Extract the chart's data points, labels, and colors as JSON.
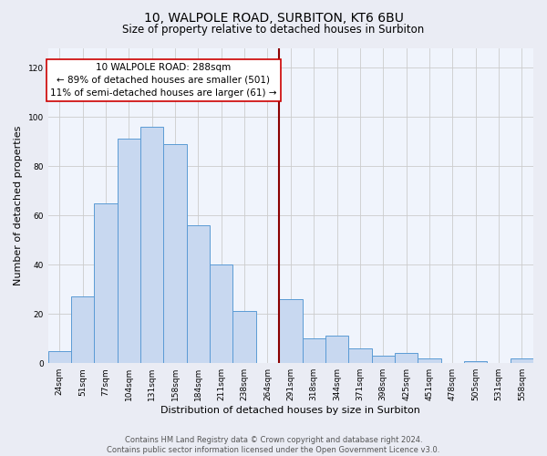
{
  "title": "10, WALPOLE ROAD, SURBITON, KT6 6BU",
  "subtitle": "Size of property relative to detached houses in Surbiton",
  "xlabel": "Distribution of detached houses by size in Surbiton",
  "ylabel": "Number of detached properties",
  "footer_lines": [
    "Contains HM Land Registry data © Crown copyright and database right 2024.",
    "Contains public sector information licensed under the Open Government Licence v3.0."
  ],
  "categories": [
    "24sqm",
    "51sqm",
    "77sqm",
    "104sqm",
    "131sqm",
    "158sqm",
    "184sqm",
    "211sqm",
    "238sqm",
    "264sqm",
    "291sqm",
    "318sqm",
    "344sqm",
    "371sqm",
    "398sqm",
    "425sqm",
    "451sqm",
    "478sqm",
    "505sqm",
    "531sqm",
    "558sqm"
  ],
  "values": [
    5,
    27,
    65,
    91,
    96,
    89,
    56,
    40,
    21,
    0,
    26,
    10,
    11,
    6,
    3,
    4,
    2,
    0,
    1,
    0,
    2
  ],
  "bar_color": "#c8d8f0",
  "bar_edge_color": "#5b9bd5",
  "reference_line_idx": 10,
  "annotation_title": "10 WALPOLE ROAD: 288sqm",
  "annotation_line1": "← 89% of detached houses are smaller (501)",
  "annotation_line2": "11% of semi-detached houses are larger (61) →",
  "annotation_box_edge": "#cc0000",
  "ylim": [
    0,
    128
  ],
  "yticks": [
    0,
    20,
    40,
    60,
    80,
    100,
    120
  ],
  "bg_color": "#eaecf4",
  "plot_bg_color": "#f0f4fc",
  "grid_color": "#cccccc",
  "title_fontsize": 10,
  "subtitle_fontsize": 8.5,
  "axis_label_fontsize": 8,
  "tick_fontsize": 6.5,
  "annotation_fontsize": 7.5,
  "footer_fontsize": 6.0
}
